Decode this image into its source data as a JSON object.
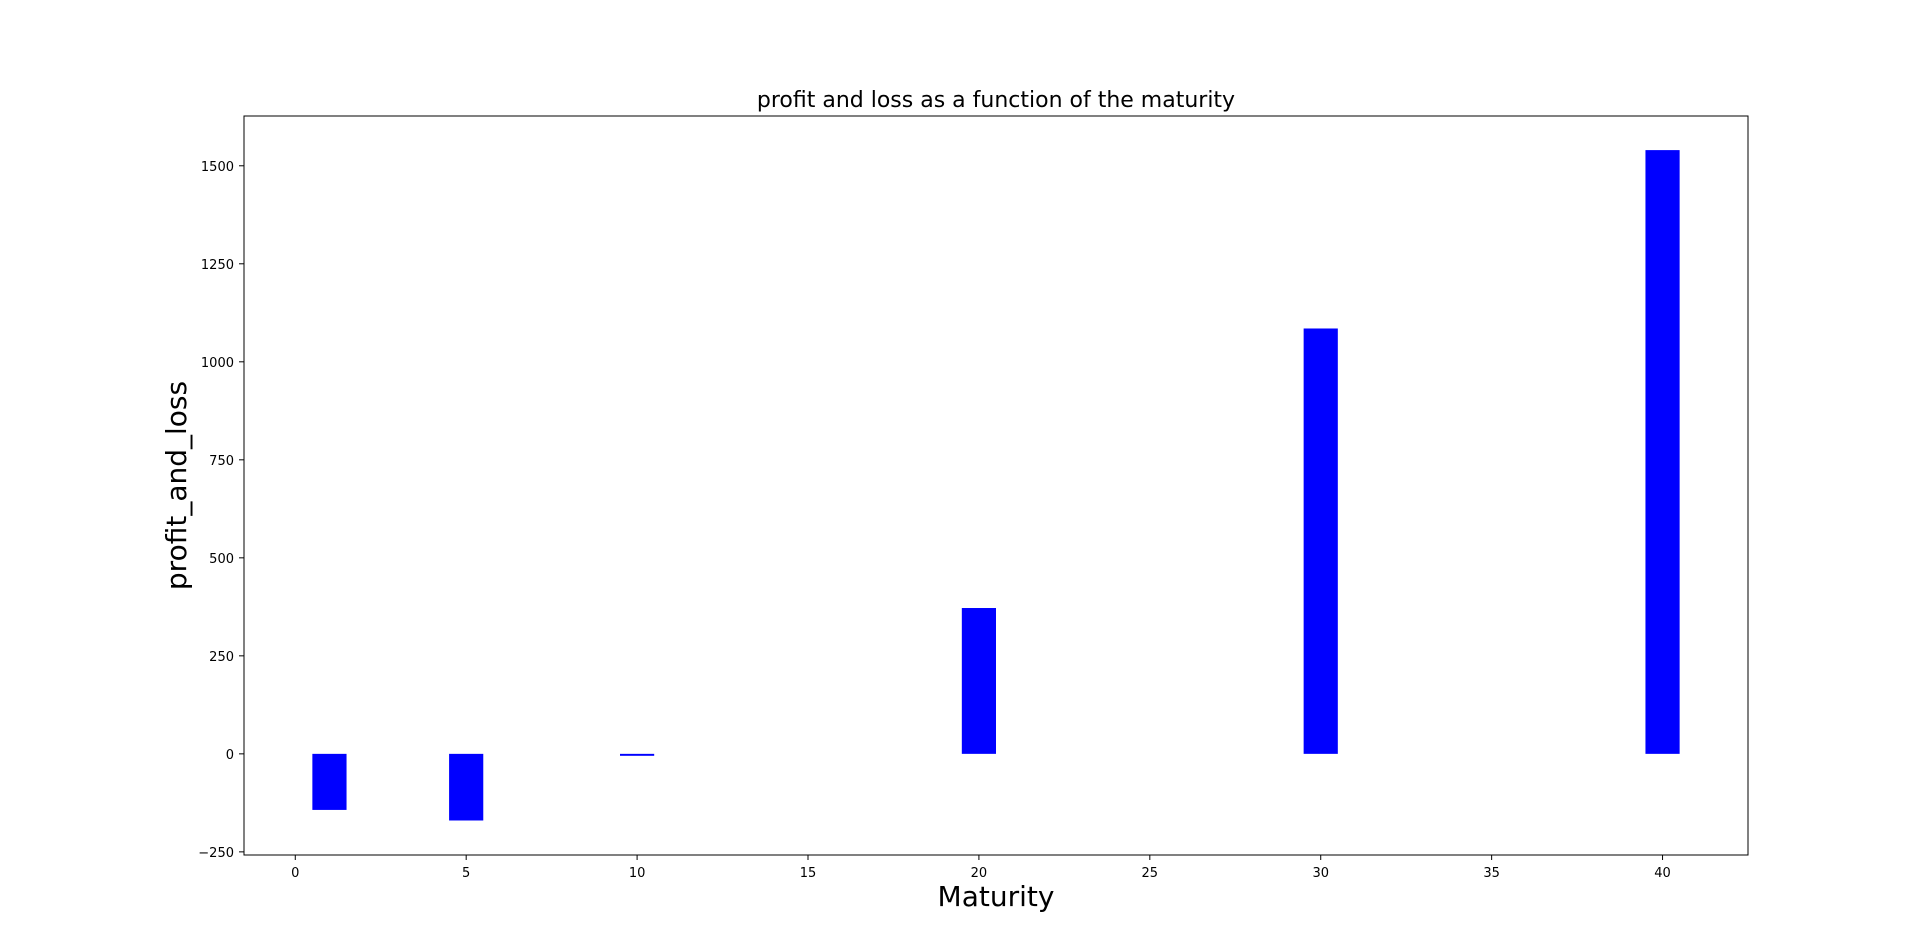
{
  "chart_data": {
    "type": "bar",
    "title": "profit and loss as a function of the maturity",
    "xlabel": "Maturity",
    "ylabel": "profit_and_loss",
    "x": [
      1,
      5,
      10,
      20,
      30,
      40
    ],
    "values": [
      -143,
      -170,
      -5,
      372,
      1085,
      1540
    ],
    "bar_width": 1,
    "bar_color": "#0000ff",
    "xlim": [
      -1.5,
      42.5
    ],
    "ylim": [
      -258,
      1627
    ],
    "xticks": [
      0,
      5,
      10,
      15,
      20,
      25,
      30,
      35,
      40
    ],
    "yticks": [
      -250,
      0,
      250,
      500,
      750,
      1000,
      1250,
      1500
    ],
    "grid": false,
    "legend": false
  }
}
